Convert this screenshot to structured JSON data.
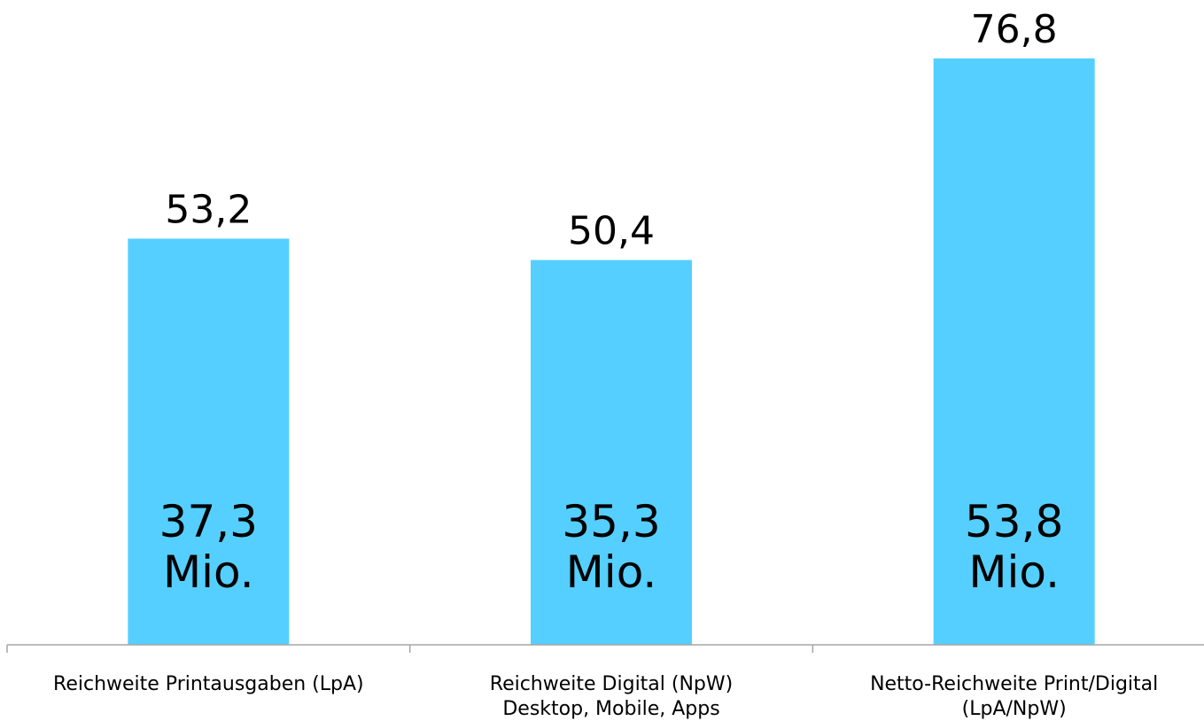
{
  "chart_data": {
    "type": "bar",
    "categories": [
      [
        "Reichweite Printausgaben (LpA)"
      ],
      [
        "Reichweite Digital (NpW)",
        "Desktop, Mobile, Apps"
      ],
      [
        "Netto-Reichweite Print/Digital",
        "(LpA/NpW)"
      ]
    ],
    "values": [
      53.2,
      50.4,
      76.8
    ],
    "value_labels": [
      "53,2",
      "50,4",
      "76,8"
    ],
    "inner_labels": [
      [
        "37,3",
        "Mio."
      ],
      [
        "35,3",
        "Mio."
      ],
      [
        "53,8",
        "Mio."
      ]
    ],
    "bar_color": "#55cfff",
    "axis_color": "#a6a6a6",
    "title": "",
    "xlabel": "",
    "ylabel": "",
    "grid": false
  }
}
